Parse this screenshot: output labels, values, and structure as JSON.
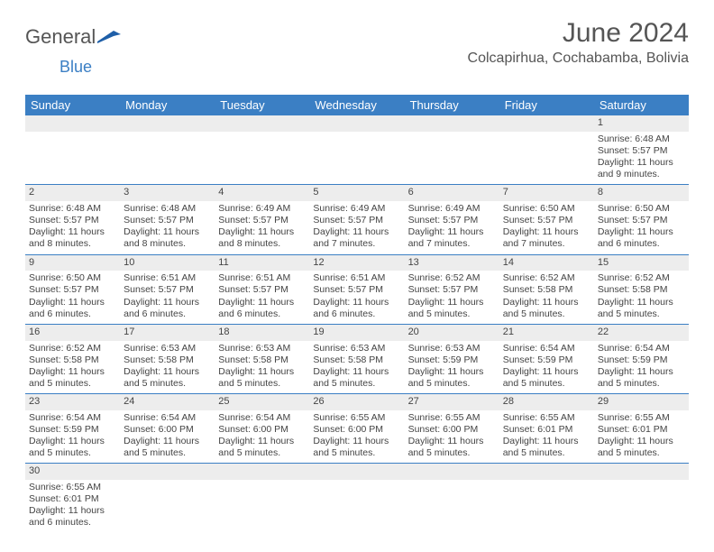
{
  "logo": {
    "general": "General",
    "blue": "Blue"
  },
  "title": "June 2024",
  "location": "Colcapirhua, Cochabamba, Bolivia",
  "colors": {
    "header_bg": "#3b7fc4",
    "header_text": "#ffffff",
    "daynum_bg": "#ededed",
    "border": "#3b7fc4",
    "text": "#444444",
    "background": "#ffffff"
  },
  "typography": {
    "title_fontsize": 30,
    "location_fontsize": 16,
    "header_fontsize": 13,
    "cell_fontsize": 10.5
  },
  "day_headers": [
    "Sunday",
    "Monday",
    "Tuesday",
    "Wednesday",
    "Thursday",
    "Friday",
    "Saturday"
  ],
  "weeks": [
    [
      null,
      null,
      null,
      null,
      null,
      null,
      {
        "n": "1",
        "sunrise": "Sunrise: 6:48 AM",
        "sunset": "Sunset: 5:57 PM",
        "daylight": "Daylight: 11 hours and 9 minutes."
      }
    ],
    [
      {
        "n": "2",
        "sunrise": "Sunrise: 6:48 AM",
        "sunset": "Sunset: 5:57 PM",
        "daylight": "Daylight: 11 hours and 8 minutes."
      },
      {
        "n": "3",
        "sunrise": "Sunrise: 6:48 AM",
        "sunset": "Sunset: 5:57 PM",
        "daylight": "Daylight: 11 hours and 8 minutes."
      },
      {
        "n": "4",
        "sunrise": "Sunrise: 6:49 AM",
        "sunset": "Sunset: 5:57 PM",
        "daylight": "Daylight: 11 hours and 8 minutes."
      },
      {
        "n": "5",
        "sunrise": "Sunrise: 6:49 AM",
        "sunset": "Sunset: 5:57 PM",
        "daylight": "Daylight: 11 hours and 7 minutes."
      },
      {
        "n": "6",
        "sunrise": "Sunrise: 6:49 AM",
        "sunset": "Sunset: 5:57 PM",
        "daylight": "Daylight: 11 hours and 7 minutes."
      },
      {
        "n": "7",
        "sunrise": "Sunrise: 6:50 AM",
        "sunset": "Sunset: 5:57 PM",
        "daylight": "Daylight: 11 hours and 7 minutes."
      },
      {
        "n": "8",
        "sunrise": "Sunrise: 6:50 AM",
        "sunset": "Sunset: 5:57 PM",
        "daylight": "Daylight: 11 hours and 6 minutes."
      }
    ],
    [
      {
        "n": "9",
        "sunrise": "Sunrise: 6:50 AM",
        "sunset": "Sunset: 5:57 PM",
        "daylight": "Daylight: 11 hours and 6 minutes."
      },
      {
        "n": "10",
        "sunrise": "Sunrise: 6:51 AM",
        "sunset": "Sunset: 5:57 PM",
        "daylight": "Daylight: 11 hours and 6 minutes."
      },
      {
        "n": "11",
        "sunrise": "Sunrise: 6:51 AM",
        "sunset": "Sunset: 5:57 PM",
        "daylight": "Daylight: 11 hours and 6 minutes."
      },
      {
        "n": "12",
        "sunrise": "Sunrise: 6:51 AM",
        "sunset": "Sunset: 5:57 PM",
        "daylight": "Daylight: 11 hours and 6 minutes."
      },
      {
        "n": "13",
        "sunrise": "Sunrise: 6:52 AM",
        "sunset": "Sunset: 5:57 PM",
        "daylight": "Daylight: 11 hours and 5 minutes."
      },
      {
        "n": "14",
        "sunrise": "Sunrise: 6:52 AM",
        "sunset": "Sunset: 5:58 PM",
        "daylight": "Daylight: 11 hours and 5 minutes."
      },
      {
        "n": "15",
        "sunrise": "Sunrise: 6:52 AM",
        "sunset": "Sunset: 5:58 PM",
        "daylight": "Daylight: 11 hours and 5 minutes."
      }
    ],
    [
      {
        "n": "16",
        "sunrise": "Sunrise: 6:52 AM",
        "sunset": "Sunset: 5:58 PM",
        "daylight": "Daylight: 11 hours and 5 minutes."
      },
      {
        "n": "17",
        "sunrise": "Sunrise: 6:53 AM",
        "sunset": "Sunset: 5:58 PM",
        "daylight": "Daylight: 11 hours and 5 minutes."
      },
      {
        "n": "18",
        "sunrise": "Sunrise: 6:53 AM",
        "sunset": "Sunset: 5:58 PM",
        "daylight": "Daylight: 11 hours and 5 minutes."
      },
      {
        "n": "19",
        "sunrise": "Sunrise: 6:53 AM",
        "sunset": "Sunset: 5:58 PM",
        "daylight": "Daylight: 11 hours and 5 minutes."
      },
      {
        "n": "20",
        "sunrise": "Sunrise: 6:53 AM",
        "sunset": "Sunset: 5:59 PM",
        "daylight": "Daylight: 11 hours and 5 minutes."
      },
      {
        "n": "21",
        "sunrise": "Sunrise: 6:54 AM",
        "sunset": "Sunset: 5:59 PM",
        "daylight": "Daylight: 11 hours and 5 minutes."
      },
      {
        "n": "22",
        "sunrise": "Sunrise: 6:54 AM",
        "sunset": "Sunset: 5:59 PM",
        "daylight": "Daylight: 11 hours and 5 minutes."
      }
    ],
    [
      {
        "n": "23",
        "sunrise": "Sunrise: 6:54 AM",
        "sunset": "Sunset: 5:59 PM",
        "daylight": "Daylight: 11 hours and 5 minutes."
      },
      {
        "n": "24",
        "sunrise": "Sunrise: 6:54 AM",
        "sunset": "Sunset: 6:00 PM",
        "daylight": "Daylight: 11 hours and 5 minutes."
      },
      {
        "n": "25",
        "sunrise": "Sunrise: 6:54 AM",
        "sunset": "Sunset: 6:00 PM",
        "daylight": "Daylight: 11 hours and 5 minutes."
      },
      {
        "n": "26",
        "sunrise": "Sunrise: 6:55 AM",
        "sunset": "Sunset: 6:00 PM",
        "daylight": "Daylight: 11 hours and 5 minutes."
      },
      {
        "n": "27",
        "sunrise": "Sunrise: 6:55 AM",
        "sunset": "Sunset: 6:00 PM",
        "daylight": "Daylight: 11 hours and 5 minutes."
      },
      {
        "n": "28",
        "sunrise": "Sunrise: 6:55 AM",
        "sunset": "Sunset: 6:01 PM",
        "daylight": "Daylight: 11 hours and 5 minutes."
      },
      {
        "n": "29",
        "sunrise": "Sunrise: 6:55 AM",
        "sunset": "Sunset: 6:01 PM",
        "daylight": "Daylight: 11 hours and 5 minutes."
      }
    ],
    [
      {
        "n": "30",
        "sunrise": "Sunrise: 6:55 AM",
        "sunset": "Sunset: 6:01 PM",
        "daylight": "Daylight: 11 hours and 6 minutes."
      },
      null,
      null,
      null,
      null,
      null,
      null
    ]
  ]
}
